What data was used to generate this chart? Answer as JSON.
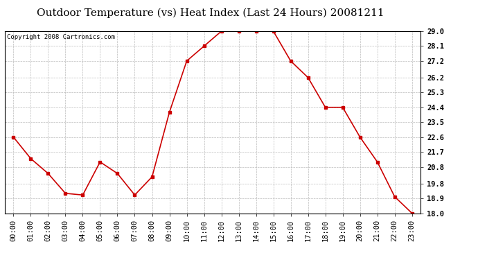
{
  "title": "Outdoor Temperature (vs) Heat Index (Last 24 Hours) 20081211",
  "copyright": "Copyright 2008 Cartronics.com",
  "x_labels": [
    "00:00",
    "01:00",
    "02:00",
    "03:00",
    "04:00",
    "05:00",
    "06:00",
    "07:00",
    "08:00",
    "09:00",
    "10:00",
    "11:00",
    "12:00",
    "13:00",
    "14:00",
    "15:00",
    "16:00",
    "17:00",
    "18:00",
    "19:00",
    "20:00",
    "21:00",
    "22:00",
    "23:00"
  ],
  "y_values": [
    22.6,
    21.3,
    20.4,
    19.2,
    19.1,
    21.1,
    20.4,
    19.1,
    20.2,
    24.1,
    27.2,
    28.1,
    29.0,
    29.0,
    29.0,
    29.0,
    27.2,
    26.2,
    24.4,
    24.4,
    22.6,
    21.1,
    19.0,
    18.0
  ],
  "y_min": 18.0,
  "y_max": 29.0,
  "y_ticks": [
    18.0,
    18.9,
    19.8,
    20.8,
    21.7,
    22.6,
    23.5,
    24.4,
    25.3,
    26.2,
    27.2,
    28.1,
    29.0
  ],
  "line_color": "#cc0000",
  "marker": "s",
  "marker_size": 2.5,
  "background_color": "#ffffff",
  "grid_color": "#bbbbbb",
  "title_fontsize": 11,
  "tick_fontsize": 7.5,
  "copyright_fontsize": 6.5
}
